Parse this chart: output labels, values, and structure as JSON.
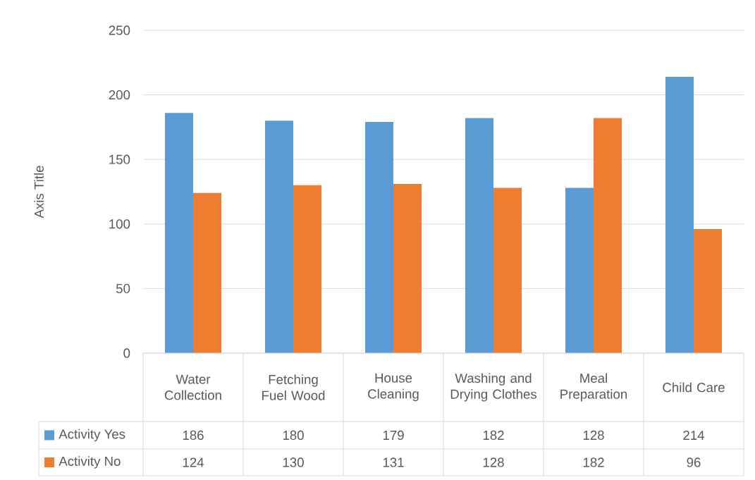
{
  "chart_data": {
    "type": "bar",
    "ylabel": "Axis Title",
    "categories": [
      "Water Collection",
      "Fetching Fuel Wood",
      "House Cleaning",
      "Washing and Drying Clothes",
      "Meal Preparation",
      "Child Care"
    ],
    "series": [
      {
        "name": "Activity Yes",
        "color": "#5b9bd5",
        "values": [
          186,
          180,
          179,
          182,
          128,
          214
        ]
      },
      {
        "name": "Activity No",
        "color": "#ed7d31",
        "values": [
          124,
          130,
          131,
          128,
          182,
          96
        ]
      }
    ],
    "ylim": [
      0,
      250
    ],
    "yticks": [
      0,
      50,
      100,
      150,
      200,
      250
    ],
    "grid": "y",
    "legend": "bottom",
    "data_labels": true
  }
}
